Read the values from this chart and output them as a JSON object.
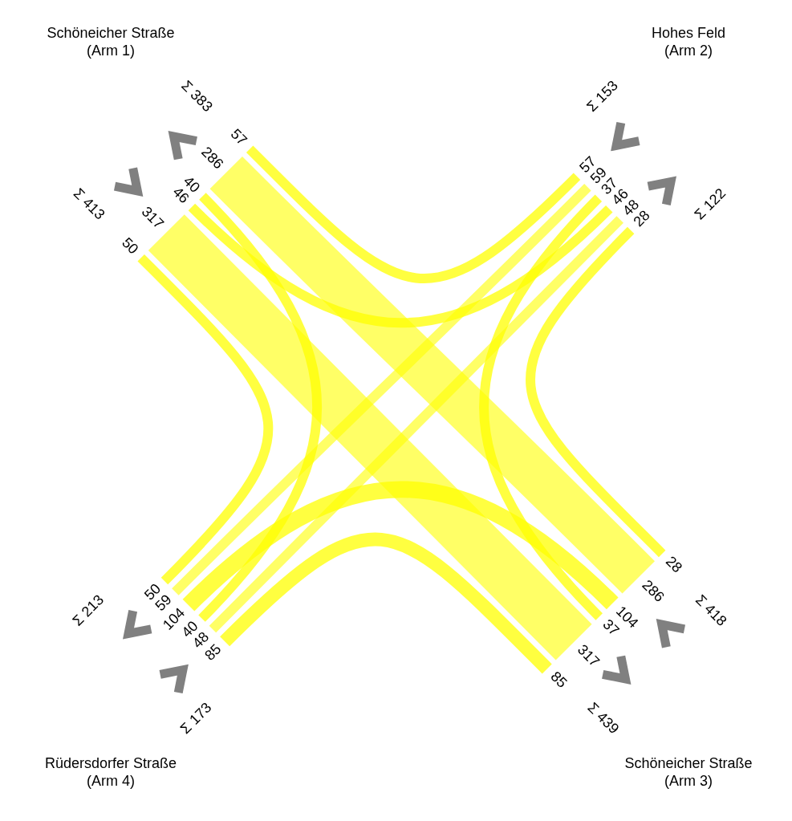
{
  "chart_data": {
    "type": "other",
    "categories": [
      "Schöneicher Straße\n(Arm 1)",
      "Hohes Feld\n(Arm 2)",
      "Schöneicher Straße\n(Arm 3)",
      "Rüdersdorfer Straße\n(Arm 4)"
    ],
    "series": [
      {
        "color": "#ffff00",
        "values": [
          null,
          46,
          317,
          50
        ]
      },
      {
        "color": "#ffff00",
        "values": [
          57,
          null,
          37,
          59
        ]
      },
      {
        "color": "#ffff00",
        "values": [
          286,
          28,
          null,
          104
        ]
      },
      {
        "color": "#ffff00",
        "values": [
          40,
          48,
          85,
          null
        ]
      },
      {
        "values": [
          null,
          57,
          286,
          40
        ]
      },
      {
        "values": [
          46,
          null,
          28,
          48
        ]
      },
      {
        "values": [
          317,
          37,
          null,
          85
        ]
      },
      {
        "values": [
          50,
          59,
          104,
          null
        ]
      }
    ],
    "totals": [
      "Σ 413",
      "Σ 383",
      "Σ 153",
      "Σ 122",
      "Σ 418",
      "Σ 439",
      "Σ 173",
      "Σ 213"
    ],
    "data_labels": true
  }
}
